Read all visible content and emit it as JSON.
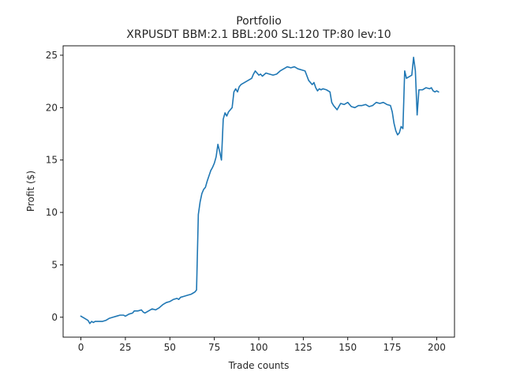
{
  "chart_data": {
    "type": "line",
    "title": "Portfolio",
    "subtitle": "XRPUSDT BBM:2.1 BBL:200 SL:120 TP:80 lev:10",
    "xlabel": "Trade counts",
    "ylabel": "Profit ($)",
    "xlim": [
      -10,
      210
    ],
    "ylim": [
      -1.9,
      25.9
    ],
    "xticks": [
      0,
      25,
      50,
      75,
      100,
      125,
      150,
      175,
      200
    ],
    "yticks": [
      0,
      5,
      10,
      15,
      20,
      25
    ],
    "grid": false,
    "line_color": "#1f77b4",
    "series": [
      {
        "x": [
          0,
          2,
          4,
          5,
          6,
          7,
          8,
          10,
          12,
          14,
          16,
          18,
          20,
          22,
          24,
          25,
          27,
          29,
          30,
          32,
          34,
          35,
          36,
          38,
          40,
          42,
          44,
          46,
          48,
          50,
          51,
          52,
          54,
          55,
          56,
          58,
          60,
          62,
          63,
          64,
          65,
          66,
          67,
          68,
          69,
          70,
          71,
          72,
          73,
          74,
          75,
          76,
          77,
          78,
          79,
          80,
          81,
          82,
          83,
          84,
          85,
          86,
          87,
          88,
          89,
          90,
          92,
          94,
          96,
          97,
          98,
          99,
          100,
          101,
          102,
          104,
          106,
          108,
          110,
          112,
          114,
          116,
          118,
          120,
          122,
          124,
          126,
          128,
          130,
          131,
          132,
          133,
          134,
          135,
          136,
          138,
          140,
          141,
          142,
          143,
          144,
          145,
          146,
          148,
          150,
          152,
          154,
          156,
          158,
          160,
          162,
          164,
          166,
          168,
          170,
          172,
          174,
          175,
          176,
          177,
          178,
          179,
          180,
          181,
          182,
          183,
          184,
          186,
          187,
          188,
          189,
          190,
          192,
          194,
          196,
          197,
          198,
          199,
          200,
          201
        ],
        "y": [
          0.1,
          -0.1,
          -0.3,
          -0.6,
          -0.4,
          -0.5,
          -0.4,
          -0.4,
          -0.4,
          -0.3,
          -0.1,
          0,
          0.1,
          0.2,
          0.2,
          0.1,
          0.3,
          0.4,
          0.6,
          0.6,
          0.7,
          0.5,
          0.4,
          0.6,
          0.8,
          0.7,
          0.9,
          1.2,
          1.4,
          1.5,
          1.6,
          1.7,
          1.8,
          1.7,
          1.9,
          2.0,
          2.1,
          2.2,
          2.3,
          2.4,
          2.6,
          9.8,
          11.0,
          11.8,
          12.2,
          12.4,
          13.0,
          13.5,
          14.0,
          14.3,
          14.7,
          15.3,
          16.5,
          15.8,
          15.0,
          18.9,
          19.5,
          19.2,
          19.6,
          19.8,
          20.0,
          21.5,
          21.8,
          21.5,
          22.0,
          22.2,
          22.4,
          22.6,
          22.8,
          23.2,
          23.5,
          23.3,
          23.1,
          23.2,
          23.0,
          23.3,
          23.2,
          23.1,
          23.2,
          23.5,
          23.7,
          23.9,
          23.8,
          23.9,
          23.7,
          23.6,
          23.5,
          22.6,
          22.2,
          22.4,
          21.9,
          21.6,
          21.8,
          21.7,
          21.8,
          21.7,
          21.5,
          20.5,
          20.2,
          20.0,
          19.8,
          20.1,
          20.4,
          20.3,
          20.5,
          20.1,
          20.0,
          20.2,
          20.2,
          20.3,
          20.1,
          20.2,
          20.5,
          20.4,
          20.5,
          20.3,
          20.2,
          19.6,
          18.5,
          17.8,
          17.4,
          17.6,
          18.2,
          18.0,
          23.5,
          22.8,
          22.9,
          23.1,
          24.8,
          23.5,
          19.3,
          21.7,
          21.7,
          21.9,
          21.8,
          21.9,
          21.6,
          21.5,
          21.6,
          21.5
        ]
      }
    ]
  }
}
